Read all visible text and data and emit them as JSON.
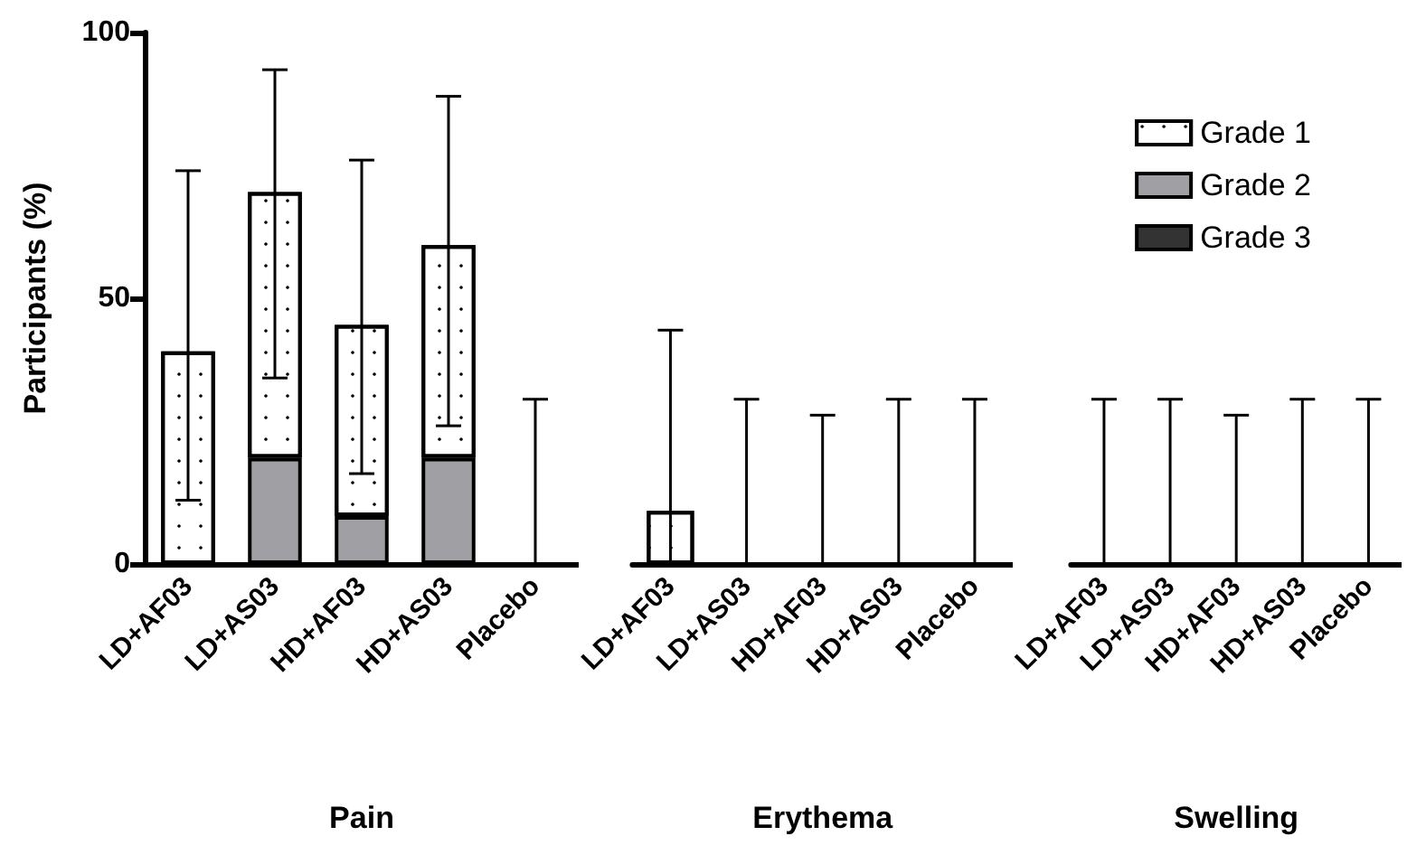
{
  "chart_data": [
    {
      "type": "bar",
      "stacked": true,
      "xlabel": "Pain",
      "ylabel": "Participants (%)",
      "categories": [
        "LD+AF03",
        "LD+AS03",
        "HD+AF03",
        "HD+AS03",
        "Placebo"
      ],
      "ylim": [
        0,
        100
      ],
      "yticks": [
        0,
        50,
        100
      ],
      "grid": false,
      "legend": false,
      "series": [
        {
          "color": "#333333",
          "values": [
            0,
            0,
            0,
            0,
            0
          ]
        },
        {
          "color": "#a0a0a4",
          "values": [
            0,
            20,
            9,
            20,
            0
          ]
        },
        {
          "color": "#ffffff",
          "values": [
            40,
            50,
            36,
            40,
            0
          ],
          "errors": [
            [
              12,
              74
            ],
            [
              35,
              93
            ],
            [
              17,
              76
            ],
            [
              26,
              88
            ],
            [
              0,
              31
            ]
          ]
        }
      ]
    },
    {
      "type": "bar",
      "stacked": true,
      "xlabel": "Erythema",
      "categories": [
        "LD+AF03",
        "LD+AS03",
        "HD+AF03",
        "HD+AS03",
        "Placebo"
      ],
      "ylim": [
        0,
        100
      ],
      "tick_labels": "x",
      "grid": false,
      "legend": false,
      "series": [
        {
          "color": "#333333",
          "values": [
            0,
            0,
            0,
            0,
            0
          ]
        },
        {
          "color": "#a0a0a4",
          "values": [
            0,
            0,
            0,
            0,
            0
          ]
        },
        {
          "color": "#ffffff",
          "values": [
            10,
            0,
            0,
            0,
            0
          ],
          "errors": [
            [
              0,
              44
            ],
            [
              0,
              31
            ],
            [
              0,
              28
            ],
            [
              0,
              31
            ],
            [
              0,
              31
            ]
          ]
        }
      ]
    },
    {
      "type": "bar",
      "stacked": true,
      "xlabel": "Swelling",
      "categories": [
        "LD+AF03",
        "LD+AS03",
        "HD+AF03",
        "HD+AS03",
        "Placebo"
      ],
      "ylim": [
        0,
        100
      ],
      "tick_labels": "x",
      "grid": false,
      "legend": "top right",
      "series": [
        {
          "name": "Grade 3",
          "color": "#333333",
          "values": [
            0,
            0,
            0,
            0,
            0
          ]
        },
        {
          "name": "Grade 2",
          "color": "#a0a0a4",
          "values": [
            0,
            0,
            0,
            0,
            0
          ]
        },
        {
          "name": "Grade 1",
          "color": "#ffffff",
          "values": [
            0,
            0,
            0,
            0,
            0
          ],
          "errors": [
            [
              0,
              31
            ],
            [
              0,
              31
            ],
            [
              0,
              28
            ],
            [
              0,
              31
            ],
            [
              0,
              31
            ]
          ]
        }
      ]
    }
  ]
}
